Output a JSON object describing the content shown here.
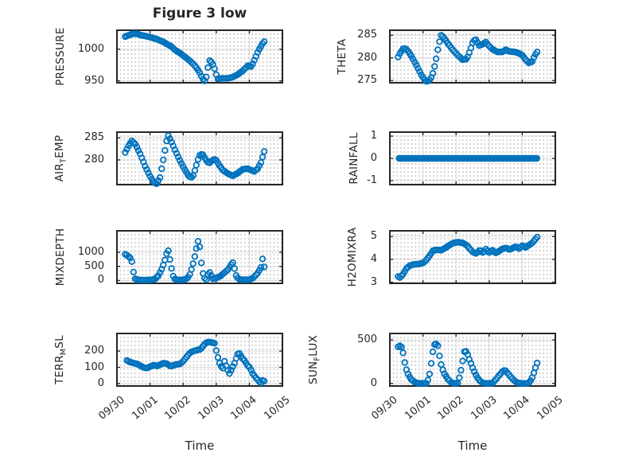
{
  "figure": {
    "title": "Figure 3 low",
    "xlabel": "Time",
    "colors": {
      "marker": "#0072BD",
      "axis": "#262626",
      "grid": "#d7d7d7",
      "minor_dot": "#c6c6c6",
      "background": "#ffffff",
      "text": "#262626"
    }
  },
  "time_axis": {
    "xlim": [
      0,
      5
    ],
    "tick_values": [
      0,
      1,
      2,
      3,
      4,
      5
    ],
    "tick_labels": [
      "09/30",
      "10/01",
      "10/02",
      "10/03",
      "10/04",
      "10/05"
    ],
    "unit": "days since 09/30"
  },
  "chart_data": [
    {
      "name": "PRESSURE",
      "type": "scatter",
      "position": "row1-left",
      "ylabel_parts": [
        {
          "t": "PRESSURE"
        }
      ],
      "ylim": [
        947,
        1030
      ],
      "yticks": [
        950,
        1000
      ],
      "sample_step": 0.05,
      "points": [
        [
          0.25,
          1020
        ],
        [
          0.35,
          1022
        ],
        [
          0.5,
          1024.5
        ],
        [
          0.6,
          1024.5
        ],
        [
          0.7,
          1022.5
        ],
        [
          0.85,
          1021
        ],
        [
          1.0,
          1019
        ],
        [
          1.2,
          1016
        ],
        [
          1.4,
          1011.5
        ],
        [
          1.55,
          1007
        ],
        [
          1.65,
          1004
        ],
        [
          1.75,
          999
        ],
        [
          1.9,
          994
        ],
        [
          2.0,
          990
        ],
        [
          2.15,
          984
        ],
        [
          2.3,
          977
        ],
        [
          2.4,
          971
        ],
        [
          2.5,
          963
        ],
        [
          2.58,
          954
        ],
        [
          2.65,
          950
        ],
        [
          2.7,
          956
        ],
        [
          2.75,
          971
        ],
        [
          2.8,
          982
        ],
        [
          2.87,
          979
        ],
        [
          2.93,
          973
        ],
        [
          3.0,
          960
        ],
        [
          3.05,
          953
        ],
        [
          3.15,
          954
        ],
        [
          3.35,
          954
        ],
        [
          3.5,
          956
        ],
        [
          3.65,
          960
        ],
        [
          3.8,
          966
        ],
        [
          3.9,
          971
        ],
        [
          3.97,
          975
        ],
        [
          4.03,
          971
        ],
        [
          4.1,
          977
        ],
        [
          4.18,
          986
        ],
        [
          4.25,
          995
        ],
        [
          4.32,
          1002
        ],
        [
          4.4,
          1009
        ],
        [
          4.45,
          1012
        ]
      ]
    },
    {
      "name": "THETA",
      "type": "scatter",
      "position": "row1-right",
      "ylabel_parts": [
        {
          "t": "THETA"
        }
      ],
      "ylim": [
        274.5,
        286.1
      ],
      "yticks": [
        275,
        280,
        285
      ],
      "sample_step": 0.05,
      "points": [
        [
          0.25,
          280.2
        ],
        [
          0.32,
          281.2
        ],
        [
          0.42,
          282.2
        ],
        [
          0.52,
          281.8
        ],
        [
          0.65,
          280.4
        ],
        [
          0.8,
          278.4
        ],
        [
          0.95,
          276.3
        ],
        [
          1.08,
          274.8
        ],
        [
          1.18,
          274.9
        ],
        [
          1.28,
          276
        ],
        [
          1.38,
          279
        ],
        [
          1.48,
          283
        ],
        [
          1.55,
          285
        ],
        [
          1.62,
          284.6
        ],
        [
          1.75,
          283.2
        ],
        [
          1.9,
          281.8
        ],
        [
          2.05,
          280.6
        ],
        [
          2.2,
          279.6
        ],
        [
          2.32,
          279.7
        ],
        [
          2.42,
          281.5
        ],
        [
          2.52,
          283.8
        ],
        [
          2.6,
          284
        ],
        [
          2.7,
          282.7
        ],
        [
          2.8,
          283
        ],
        [
          2.9,
          283.5
        ],
        [
          3.0,
          282.6
        ],
        [
          3.1,
          281.9
        ],
        [
          3.25,
          281.3
        ],
        [
          3.4,
          281.3
        ],
        [
          3.5,
          281.8
        ],
        [
          3.62,
          281.4
        ],
        [
          3.78,
          281.3
        ],
        [
          3.9,
          281
        ],
        [
          4.0,
          280.6
        ],
        [
          4.1,
          279.6
        ],
        [
          4.2,
          278.9
        ],
        [
          4.3,
          279.2
        ],
        [
          4.38,
          280.6
        ],
        [
          4.45,
          281.3
        ]
      ]
    },
    {
      "name": "AIR_TEMP",
      "type": "scatter",
      "position": "row2-left",
      "ylabel_parts": [
        {
          "t": "AIR"
        },
        {
          "t": "T",
          "sub": true
        },
        {
          "t": "EMP"
        }
      ],
      "ylim": [
        274.4,
        286.3
      ],
      "yticks": [
        280,
        285
      ],
      "sample_step": 0.05,
      "points": [
        [
          0.25,
          281.7
        ],
        [
          0.35,
          283.2
        ],
        [
          0.45,
          284.3
        ],
        [
          0.55,
          283.6
        ],
        [
          0.7,
          281.4
        ],
        [
          0.85,
          278.6
        ],
        [
          1.0,
          276.3
        ],
        [
          1.12,
          274.8
        ],
        [
          1.2,
          274.6
        ],
        [
          1.3,
          276
        ],
        [
          1.4,
          280
        ],
        [
          1.5,
          284.3
        ],
        [
          1.55,
          285.5
        ],
        [
          1.63,
          284.4
        ],
        [
          1.75,
          282.3
        ],
        [
          1.9,
          279.9
        ],
        [
          2.05,
          277.8
        ],
        [
          2.18,
          276.2
        ],
        [
          2.28,
          276
        ],
        [
          2.38,
          278.3
        ],
        [
          2.48,
          280.9
        ],
        [
          2.58,
          281.4
        ],
        [
          2.68,
          280.1
        ],
        [
          2.78,
          279.2
        ],
        [
          2.88,
          279.9
        ],
        [
          2.98,
          280.2
        ],
        [
          3.08,
          278.9
        ],
        [
          3.2,
          277.7
        ],
        [
          3.35,
          276.9
        ],
        [
          3.5,
          276.4
        ],
        [
          3.65,
          277
        ],
        [
          3.8,
          277.9
        ],
        [
          3.95,
          278
        ],
        [
          4.05,
          277.7
        ],
        [
          4.15,
          277.4
        ],
        [
          4.25,
          278
        ],
        [
          4.35,
          279.4
        ],
        [
          4.45,
          281.9
        ]
      ]
    },
    {
      "name": "RAINFALL",
      "type": "scatter",
      "position": "row2-right",
      "ylabel_parts": [
        {
          "t": "RAINFALL"
        }
      ],
      "ylim": [
        -1.18,
        1.18
      ],
      "yticks": [
        -1,
        0,
        1
      ],
      "sample_step": 0.04,
      "points": [
        [
          0.28,
          0
        ],
        [
          4.45,
          0
        ]
      ]
    },
    {
      "name": "MIXDEPTH",
      "type": "scatter",
      "position": "row3-left",
      "ylabel_parts": [
        {
          "t": "MIXDEPTH"
        }
      ],
      "ylim": [
        -100,
        1760
      ],
      "yticks": [
        0,
        500,
        1000
      ],
      "sample_step": 0.05,
      "points": [
        [
          0.25,
          930
        ],
        [
          0.32,
          880
        ],
        [
          0.4,
          800
        ],
        [
          0.45,
          670
        ],
        [
          0.5,
          300
        ],
        [
          0.55,
          60
        ],
        [
          0.65,
          20
        ],
        [
          0.85,
          15
        ],
        [
          1.05,
          25
        ],
        [
          1.15,
          50
        ],
        [
          1.25,
          170
        ],
        [
          1.32,
          320
        ],
        [
          1.38,
          480
        ],
        [
          1.44,
          680
        ],
        [
          1.5,
          950
        ],
        [
          1.54,
          1130
        ],
        [
          1.58,
          830
        ],
        [
          1.62,
          660
        ],
        [
          1.66,
          350
        ],
        [
          1.72,
          60
        ],
        [
          1.85,
          20
        ],
        [
          2.0,
          25
        ],
        [
          2.1,
          60
        ],
        [
          2.18,
          150
        ],
        [
          2.24,
          350
        ],
        [
          2.3,
          600
        ],
        [
          2.36,
          900
        ],
        [
          2.42,
          1250
        ],
        [
          2.47,
          1480
        ],
        [
          2.52,
          1000
        ],
        [
          2.56,
          500
        ],
        [
          2.62,
          120
        ],
        [
          2.7,
          30
        ],
        [
          2.78,
          330
        ],
        [
          2.84,
          200
        ],
        [
          2.9,
          60
        ],
        [
          3.0,
          90
        ],
        [
          3.12,
          150
        ],
        [
          3.25,
          280
        ],
        [
          3.35,
          380
        ],
        [
          3.45,
          560
        ],
        [
          3.5,
          630
        ],
        [
          3.55,
          420
        ],
        [
          3.6,
          180
        ],
        [
          3.68,
          40
        ],
        [
          3.82,
          25
        ],
        [
          4.0,
          30
        ],
        [
          4.1,
          80
        ],
        [
          4.18,
          170
        ],
        [
          4.25,
          260
        ],
        [
          4.32,
          400
        ],
        [
          4.38,
          530
        ],
        [
          4.42,
          1000
        ],
        [
          4.45,
          480
        ]
      ]
    },
    {
      "name": "H2OMIXRA",
      "type": "scatter",
      "position": "row3-right",
      "ylabel_parts": [
        {
          "t": "H2OMIXRA"
        }
      ],
      "ylim": [
        2.95,
        5.25
      ],
      "yticks": [
        3,
        4,
        5
      ],
      "sample_step": 0.05,
      "points": [
        [
          0.25,
          3.25
        ],
        [
          0.3,
          3.2
        ],
        [
          0.4,
          3.35
        ],
        [
          0.5,
          3.6
        ],
        [
          0.6,
          3.72
        ],
        [
          0.72,
          3.78
        ],
        [
          0.9,
          3.8
        ],
        [
          1.02,
          3.85
        ],
        [
          1.12,
          4.0
        ],
        [
          1.22,
          4.2
        ],
        [
          1.3,
          4.38
        ],
        [
          1.42,
          4.42
        ],
        [
          1.55,
          4.4
        ],
        [
          1.68,
          4.5
        ],
        [
          1.8,
          4.62
        ],
        [
          1.92,
          4.72
        ],
        [
          2.05,
          4.75
        ],
        [
          2.2,
          4.72
        ],
        [
          2.32,
          4.62
        ],
        [
          2.42,
          4.45
        ],
        [
          2.52,
          4.3
        ],
        [
          2.62,
          4.25
        ],
        [
          2.72,
          4.42
        ],
        [
          2.82,
          4.27
        ],
        [
          2.9,
          4.45
        ],
        [
          3.0,
          4.3
        ],
        [
          3.1,
          4.4
        ],
        [
          3.2,
          4.28
        ],
        [
          3.3,
          4.36
        ],
        [
          3.42,
          4.47
        ],
        [
          3.52,
          4.5
        ],
        [
          3.62,
          4.42
        ],
        [
          3.72,
          4.5
        ],
        [
          3.82,
          4.56
        ],
        [
          3.9,
          4.47
        ],
        [
          4.0,
          4.6
        ],
        [
          4.1,
          4.52
        ],
        [
          4.2,
          4.62
        ],
        [
          4.3,
          4.72
        ],
        [
          4.38,
          4.85
        ],
        [
          4.45,
          4.97
        ]
      ]
    },
    {
      "name": "TERR_MSL",
      "type": "scatter",
      "position": "row4-left",
      "show_xticks": true,
      "ylabel_parts": [
        {
          "t": "TERR"
        },
        {
          "t": "M",
          "sub": true
        },
        {
          "t": "SL"
        }
      ],
      "ylim": [
        -15,
        308
      ],
      "yticks": [
        0,
        100,
        200
      ],
      "sample_step": 0.05,
      "points": [
        [
          0.3,
          142
        ],
        [
          0.4,
          132
        ],
        [
          0.5,
          126
        ],
        [
          0.62,
          120
        ],
        [
          0.72,
          108
        ],
        [
          0.82,
          97
        ],
        [
          0.92,
          95
        ],
        [
          1.02,
          106
        ],
        [
          1.12,
          114
        ],
        [
          1.22,
          107
        ],
        [
          1.32,
          118
        ],
        [
          1.42,
          126
        ],
        [
          1.52,
          121
        ],
        [
          1.62,
          105
        ],
        [
          1.72,
          113
        ],
        [
          1.82,
          118
        ],
        [
          1.92,
          121
        ],
        [
          2.02,
          142
        ],
        [
          2.12,
          168
        ],
        [
          2.22,
          192
        ],
        [
          2.32,
          200
        ],
        [
          2.42,
          206
        ],
        [
          2.52,
          210
        ],
        [
          2.6,
          230
        ],
        [
          2.68,
          250
        ],
        [
          2.78,
          256
        ],
        [
          2.88,
          252
        ],
        [
          2.95,
          248
        ],
        [
          3.02,
          185
        ],
        [
          3.08,
          135
        ],
        [
          3.14,
          108
        ],
        [
          3.2,
          95
        ],
        [
          3.26,
          145
        ],
        [
          3.32,
          92
        ],
        [
          3.4,
          62
        ],
        [
          3.48,
          95
        ],
        [
          3.56,
          130
        ],
        [
          3.64,
          180
        ],
        [
          3.7,
          185
        ],
        [
          3.78,
          158
        ],
        [
          3.86,
          140
        ],
        [
          3.94,
          112
        ],
        [
          4.02,
          98
        ],
        [
          4.1,
          62
        ],
        [
          4.2,
          35
        ],
        [
          4.3,
          12
        ],
        [
          4.36,
          3
        ],
        [
          4.42,
          28
        ],
        [
          4.45,
          15
        ]
      ]
    },
    {
      "name": "SUN_FLUX",
      "type": "scatter",
      "position": "row4-right",
      "show_xticks": true,
      "ylabel_parts": [
        {
          "t": "SUN"
        },
        {
          "t": "F",
          "sub": true
        },
        {
          "t": "LUX"
        }
      ],
      "ylim": [
        -30,
        575
      ],
      "yticks": [
        0,
        500
      ],
      "sample_step": 0.05,
      "points": [
        [
          0.25,
          420
        ],
        [
          0.3,
          432
        ],
        [
          0.36,
          415
        ],
        [
          0.42,
          320
        ],
        [
          0.46,
          215
        ],
        [
          0.52,
          130
        ],
        [
          0.58,
          85
        ],
        [
          0.65,
          45
        ],
        [
          0.75,
          15
        ],
        [
          0.85,
          2
        ],
        [
          1.1,
          0
        ],
        [
          1.18,
          60
        ],
        [
          1.26,
          255
        ],
        [
          1.33,
          445
        ],
        [
          1.4,
          455
        ],
        [
          1.46,
          430
        ],
        [
          1.52,
          260
        ],
        [
          1.58,
          175
        ],
        [
          1.65,
          110
        ],
        [
          1.75,
          50
        ],
        [
          1.85,
          12
        ],
        [
          1.95,
          0
        ],
        [
          2.05,
          5
        ],
        [
          2.12,
          90
        ],
        [
          2.18,
          215
        ],
        [
          2.25,
          365
        ],
        [
          2.32,
          370
        ],
        [
          2.38,
          295
        ],
        [
          2.44,
          240
        ],
        [
          2.5,
          180
        ],
        [
          2.58,
          110
        ],
        [
          2.68,
          45
        ],
        [
          2.78,
          10
        ],
        [
          2.9,
          0
        ],
        [
          3.1,
          2
        ],
        [
          3.2,
          45
        ],
        [
          3.3,
          92
        ],
        [
          3.4,
          135
        ],
        [
          3.48,
          155
        ],
        [
          3.56,
          118
        ],
        [
          3.66,
          72
        ],
        [
          3.76,
          32
        ],
        [
          3.86,
          5
        ],
        [
          4.0,
          0
        ],
        [
          4.18,
          0
        ],
        [
          4.28,
          45
        ],
        [
          4.34,
          110
        ],
        [
          4.4,
          180
        ],
        [
          4.45,
          235
        ]
      ]
    }
  ]
}
